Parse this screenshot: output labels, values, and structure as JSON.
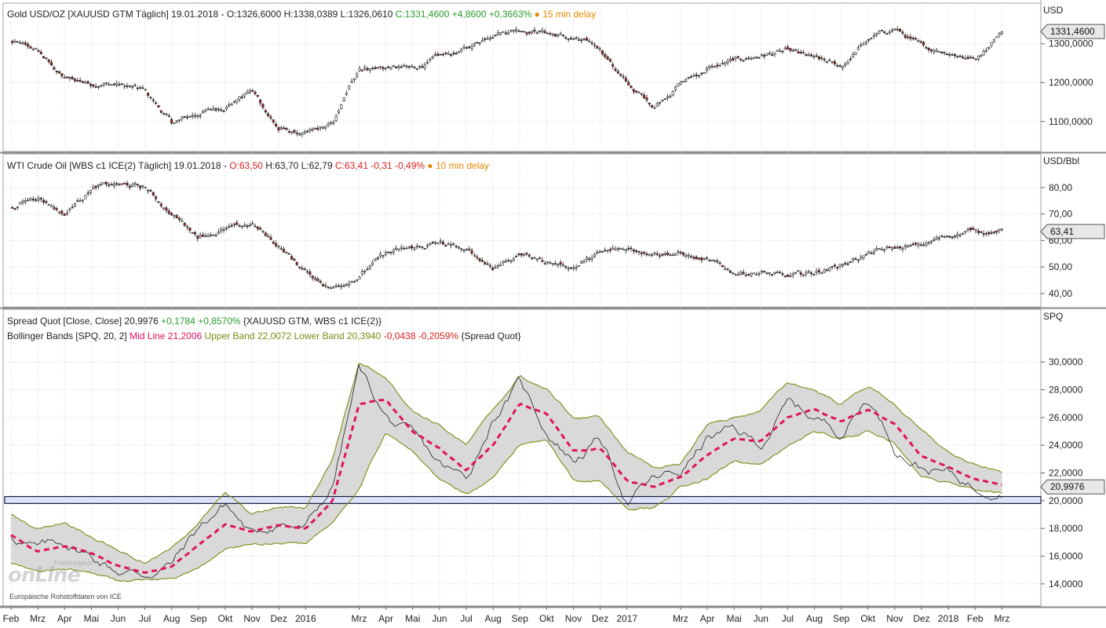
{
  "colors": {
    "up_candle": "#ffffff",
    "down_candle": "#b0262a",
    "candle_outline": "#1a1a1a",
    "midline": "#e0125f",
    "band_line": "#7f8a12",
    "band_fill": "#d9d9d9",
    "support_fill": "#dde3f7",
    "support_border": "#1a1a40",
    "grid": "#d8d8d8",
    "value_tag": "#e8e8e8"
  },
  "panels": {
    "gold": {
      "header": {
        "name": "Gold USD/OZ [XAUUSD GTM Täglich] 19.01.2018 - O:1326,6000 H:1338,0389 L:1326,0610",
        "close": "C:1331,4600 +4,8600 +0,3663%",
        "delay": "● 15 min delay"
      },
      "unit": "USD",
      "current_label": "1331,4600"
    },
    "oil": {
      "header": {
        "name": "WTI Crude Oil [WBS c1 ICE(2) Täglich] 19.01.2018 - ",
        "open": "O:63,50",
        "mid": " H:63,70 L:62,79 ",
        "close": "C:63,41 -0,31 -0,49%",
        "delay": "● 10 min delay"
      },
      "unit": "USD/Bbl",
      "current_label": "63,41"
    },
    "spread": {
      "header1": {
        "name": "Spread Quot [Close, Close] ",
        "value": "20,9976",
        "change": " +0,1784 +0,8570%",
        "source": " {XAUUSD GTM, WBS c1 ICE(2)}"
      },
      "header2": {
        "name": "Bollinger Bands [SPQ, 20, 2] ",
        "mid": "Mid Line 21,2006",
        "bands": " Upper Band 22,0072 Lower Band 20,3940",
        "change": " -0,0438 -0,2059%",
        "source": " {Spread Quot}"
      },
      "unit": "SPQ",
      "current_label": "20,9976"
    }
  },
  "watermark": {
    "brand_small": "Tradesignal",
    "brand_large": "onLine"
  },
  "credit": "Europäische Rohstoffdaten von ICE",
  "chart_data": [
    {
      "type": "line",
      "title": "Gold USD/OZ [XAUUSD GTM Täglich]",
      "ylabel": "USD",
      "ylim": [
        1045,
        1360
      ],
      "yticks": [
        "1100,0000",
        "1200,0000",
        "1300,0000"
      ],
      "yticks_values": [
        1100,
        1200,
        1300
      ],
      "x_month_index": [
        0,
        1,
        2,
        3,
        4,
        5,
        6,
        7,
        8,
        9,
        10,
        11,
        12,
        13,
        14,
        15,
        16,
        17,
        18,
        19,
        20,
        21,
        22,
        23,
        24,
        25,
        26,
        27,
        28,
        29,
        30,
        31,
        32,
        33,
        34,
        35,
        36,
        37
      ],
      "values": [
        1305,
        1280,
        1210,
        1200,
        1195,
        1178,
        1095,
        1120,
        1140,
        1180,
        1080,
        1065,
        1090,
        1240,
        1240,
        1235,
        1265,
        1285,
        1330,
        1340,
        1330,
        1310,
        1290,
        1195,
        1140,
        1200,
        1235,
        1255,
        1270,
        1280,
        1260,
        1240,
        1310,
        1340,
        1290,
        1280,
        1260,
        1335
      ]
    },
    {
      "type": "line",
      "title": "WTI Crude Oil [WBS c1 ICE(2) Täglich]",
      "ylabel": "USD/Bbl",
      "ylim": [
        37,
        85
      ],
      "yticks": [
        "40,00",
        "50,00",
        "60,00",
        "70,00",
        "80,00"
      ],
      "yticks_values": [
        40,
        50,
        60,
        70,
        80
      ],
      "x_month_index": [
        0,
        1,
        2,
        3,
        4,
        5,
        6,
        7,
        8,
        9,
        10,
        11,
        12,
        13,
        14,
        15,
        16,
        17,
        18,
        19,
        20,
        21,
        22,
        23,
        24,
        25,
        26,
        27,
        28,
        29,
        30,
        31,
        32,
        33,
        34,
        35,
        36,
        37
      ],
      "values": [
        72,
        77,
        70,
        80,
        81,
        80,
        70,
        62,
        64,
        66,
        58,
        48,
        42,
        47,
        55,
        57,
        59,
        56,
        50,
        55,
        52,
        50,
        55,
        57,
        56,
        55,
        52,
        48,
        48,
        46,
        48,
        51,
        55,
        57,
        58,
        62,
        64,
        63.4
      ]
    },
    {
      "type": "line",
      "title": "Spread Quot [Close, Close]",
      "ylabel": "SPQ",
      "ylim": [
        12.8,
        31.2
      ],
      "yticks": [
        "14,0000",
        "16,0000",
        "18,0000",
        "20,0000",
        "22,0000",
        "24,0000",
        "26,0000",
        "28,0000",
        "30,0000"
      ],
      "yticks_values": [
        14,
        16,
        18,
        20,
        22,
        24,
        26,
        28,
        30
      ],
      "support_band": [
        19.8,
        20.3
      ],
      "series": [
        {
          "name": "Spread Quot",
          "values": [
            17.5,
            16.5,
            17,
            16,
            15,
            14.7,
            15.5,
            18,
            19.8,
            17.5,
            18.5,
            18,
            21,
            29.5,
            26,
            24.5,
            22.5,
            21.5,
            26,
            28.5,
            25,
            23,
            24.5,
            20,
            21.5,
            22,
            24.5,
            25,
            24,
            27,
            26,
            25,
            27.5,
            24,
            22.5,
            22,
            21,
            21
          ]
        },
        {
          "name": "Mid Line",
          "values": [
            17.5,
            16.3,
            16.7,
            16.2,
            15.3,
            14.8,
            15.2,
            16.8,
            18.3,
            17.8,
            18.2,
            18,
            20,
            27,
            27.3,
            25,
            23.8,
            22.2,
            24,
            27,
            26.3,
            23.6,
            23.8,
            21.4,
            21,
            21.7,
            23.3,
            24.5,
            24.3,
            26,
            26.6,
            25.7,
            26.6,
            25.5,
            23.2,
            22.4,
            21.6,
            21.2
          ]
        },
        {
          "name": "Upper Band",
          "values": [
            19,
            18,
            18.5,
            17.5,
            16.5,
            15.5,
            16.5,
            18.5,
            20.5,
            19,
            19.5,
            19.5,
            23,
            30,
            29,
            26.5,
            25.5,
            24,
            26.5,
            29,
            28,
            26,
            26,
            23.5,
            22.5,
            22.5,
            25.5,
            26,
            26.5,
            28.5,
            28,
            27,
            28.3,
            27,
            25,
            23.5,
            22.5,
            22
          ]
        },
        {
          "name": "Lower Band",
          "values": [
            15.5,
            14.8,
            15,
            14.8,
            14.2,
            14.3,
            14.3,
            15,
            16.5,
            16.8,
            17,
            17,
            18.5,
            21,
            25,
            23.5,
            21.5,
            20.5,
            21.5,
            24,
            24.5,
            21.5,
            21.5,
            19.5,
            19.5,
            21,
            21.5,
            23,
            22.5,
            23.8,
            25,
            24.5,
            25,
            24,
            21.5,
            21.3,
            20.8,
            20.5
          ]
        }
      ]
    }
  ],
  "x_axis": {
    "labels": [
      "Feb",
      "Mrz",
      "Apr",
      "Mai",
      "Jun",
      "Jul",
      "Aug",
      "Sep",
      "Okt",
      "Nov",
      "Dez",
      "2016",
      "Mrz",
      "Apr",
      "Mai",
      "Jun",
      "Jul",
      "Aug",
      "Sep",
      "Okt",
      "Nov",
      "Dez",
      "2017",
      "Mrz",
      "Apr",
      "Mai",
      "Jun",
      "Jul",
      "Aug",
      "Sep",
      "Okt",
      "Nov",
      "Dez",
      "2018",
      "Feb",
      "Mrz"
    ],
    "label_month_index": [
      0,
      1,
      2,
      3,
      4,
      5,
      6,
      7,
      8,
      9,
      10,
      11,
      13,
      14,
      15,
      16,
      17,
      18,
      19,
      20,
      21,
      22,
      23,
      25,
      26,
      27,
      28,
      29,
      30,
      31,
      32,
      33,
      34,
      35,
      36,
      37
    ]
  }
}
